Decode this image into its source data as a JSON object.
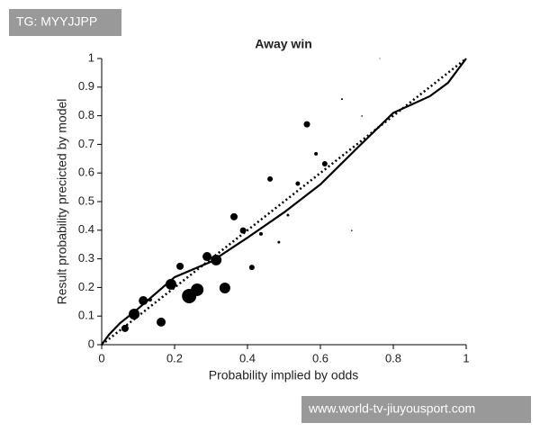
{
  "chart_data": {
    "type": "scatter",
    "title": "Away win",
    "x_label": "Probability implied by odds",
    "y_label": "Result probability precicted by model",
    "x": [
      0.064,
      0.089,
      0.114,
      0.133,
      0.163,
      0.19,
      0.215,
      0.24,
      0.262,
      0.289,
      0.314,
      0.338,
      0.363,
      0.388,
      0.412,
      0.437,
      0.462,
      0.486,
      0.511,
      0.538,
      0.563,
      0.588,
      0.612,
      0.659,
      0.714,
      0.686,
      0.763
    ],
    "values": [
      0.057,
      0.107,
      0.154,
      0.157,
      0.079,
      0.211,
      0.274,
      0.17,
      0.192,
      0.308,
      0.296,
      0.198,
      0.447,
      0.399,
      0.27,
      0.387,
      0.579,
      0.358,
      0.453,
      0.563,
      0.77,
      0.667,
      0.632,
      0.858,
      0.799,
      0.399,
      1.0
    ],
    "sizes": [
      4,
      6,
      5,
      2,
      5,
      6,
      4,
      8,
      7,
      5,
      6,
      6,
      4,
      3.5,
      3,
      2,
      3,
      1.5,
      1.5,
      2.5,
      3.5,
      2,
      3,
      1,
      0.8,
      0.8,
      0.5
    ],
    "color": "#000000",
    "lines": [
      {
        "style": "dotted",
        "x": [
          0,
          1
        ],
        "values": [
          0,
          1
        ]
      },
      {
        "style": "solid",
        "x": [
          0,
          0.02,
          0.05,
          0.1,
          0.2,
          0.3,
          0.4,
          0.5,
          0.6,
          0.7,
          0.8,
          0.9,
          0.95,
          1
        ],
        "values": [
          0,
          0.035,
          0.075,
          0.126,
          0.236,
          0.29,
          0.374,
          0.462,
          0.56,
          0.686,
          0.81,
          0.868,
          0.915,
          1
        ]
      }
    ],
    "xlim": [
      0,
      1
    ],
    "ylim": [
      0,
      1
    ],
    "xticks": [
      0,
      0.2,
      0.4,
      0.6,
      0.8,
      1
    ],
    "yticks": [
      0,
      0.1,
      0.2,
      0.3,
      0.4,
      0.5,
      0.6,
      0.7,
      0.8,
      0.9,
      1
    ],
    "grid": false
  },
  "watermarks": [
    "TG: MYYJJPP",
    "www.world-tv-jiuyousport.com"
  ]
}
